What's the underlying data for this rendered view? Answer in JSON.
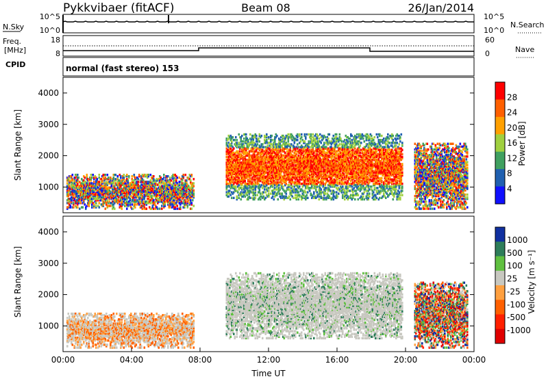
{
  "header": {
    "radar": "Pykkvibaer (fitACF)",
    "beam": "Beam 08",
    "date": "26/Jan/2014"
  },
  "panels": {
    "nsky": {
      "label": "N.Sky",
      "right_label": "N.Search",
      "left_ticks": [
        "10^5",
        "10^0"
      ],
      "right_ticks": [
        "10^5",
        "10^0"
      ]
    },
    "freq": {
      "label_line1": "Freq.",
      "label_line2": "[MHz]",
      "right_label": "Nave",
      "left_ticks": [
        "18",
        "8"
      ],
      "right_ticks": [
        "60",
        "0"
      ]
    },
    "cpid": {
      "label": "CPID",
      "text": "normal (fast stereo) 153"
    }
  },
  "chart_data": [
    {
      "type": "heatmap",
      "title": "",
      "ylabel": "Slant Range [km]",
      "colorbar_label": "Power [dB]",
      "colorbar_ticks": [
        "28",
        "24",
        "20",
        "16",
        "12",
        "8",
        "4"
      ],
      "xlim": [
        "00:00",
        "24:00"
      ],
      "ylim": [
        180,
        4500
      ],
      "yticks": [
        1000,
        2000,
        3000,
        4000
      ],
      "echo_regions_description_free": true,
      "regions": [
        {
          "t0": 0.2,
          "t1": 7.6,
          "r0": 300,
          "r1": 1400,
          "level": "mixed"
        },
        {
          "t0": 9.5,
          "t1": 19.8,
          "r0": 600,
          "r1": 2700,
          "level": "high"
        },
        {
          "t0": 20.5,
          "t1": 23.6,
          "r0": 300,
          "r1": 2400,
          "level": "mixed"
        }
      ]
    },
    {
      "type": "heatmap",
      "title": "",
      "xlabel": "Time UT",
      "ylabel": "Slant Range [km]",
      "colorbar_label": "Velocity [m s⁻¹]",
      "colorbar_ticks": [
        "1000",
        "500",
        "100",
        "25",
        "-25",
        "-100",
        "-500",
        "-1000"
      ],
      "xticks": [
        "00:00",
        "04:00",
        "08:00",
        "12:00",
        "16:00",
        "20:00",
        "00:00"
      ],
      "ylim": [
        180,
        4500
      ],
      "yticks": [
        1000,
        2000,
        3000,
        4000
      ],
      "regions": [
        {
          "t0": 0.2,
          "t1": 7.6,
          "r0": 300,
          "r1": 1400,
          "level": "toward"
        },
        {
          "t0": 9.5,
          "t1": 19.8,
          "r0": 600,
          "r1": 2700,
          "level": "ground"
        },
        {
          "t0": 20.5,
          "t1": 23.6,
          "r0": 300,
          "r1": 2400,
          "level": "mixed"
        }
      ]
    }
  ],
  "colors": {
    "power": [
      "#ff0000",
      "#ff6000",
      "#ffa000",
      "#a0d040",
      "#40a060",
      "#2060b0",
      "#1010ff"
    ],
    "velocity": [
      "#1030a0",
      "#2e7d5a",
      "#60c040",
      "#c8c8c0",
      "#ffa040",
      "#ff6000",
      "#ff2000",
      "#e00000"
    ]
  }
}
